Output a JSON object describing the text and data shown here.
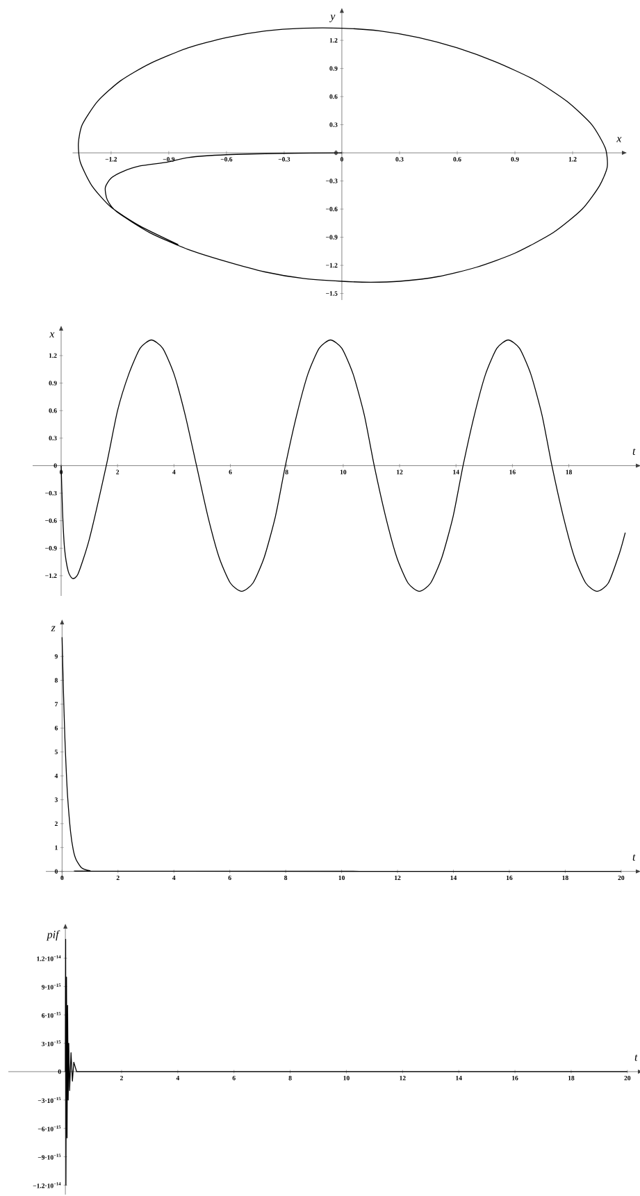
{
  "chart_data": [
    {
      "type": "line",
      "xlabel": "x",
      "ylabel": "y",
      "color": "#000000",
      "xlim": [
        -1.4,
        1.46
      ],
      "ylim": [
        -1.57,
        1.5
      ],
      "xticks": [
        {
          "value": -1.2,
          "label": "−1.2"
        },
        {
          "value": -0.9,
          "label": "−0.9"
        },
        {
          "value": -0.6,
          "label": "−0.6"
        },
        {
          "value": -0.3,
          "label": "−0.3"
        },
        0,
        0.3,
        0.6,
        0.9,
        1.2
      ],
      "yticks": [
        {
          "value": -1.5,
          "label": "−1.5"
        },
        {
          "value": -1.2,
          "label": "−1.2"
        },
        {
          "value": -0.9,
          "label": "−0.9"
        },
        {
          "value": -0.6,
          "label": "−0.6"
        },
        {
          "value": -0.3,
          "label": "−0.3"
        },
        0,
        0.3,
        0.6,
        0.9,
        1.2
      ],
      "x": [
        0,
        -0.3,
        -0.6,
        -0.8,
        -0.91,
        -1.05,
        -1.14,
        -1.2,
        -1.23,
        -1.22,
        -1.17,
        -1.0,
        -0.8,
        -0.6,
        -0.4,
        -0.2,
        0,
        0.15,
        0.3,
        0.5,
        0.7,
        0.9,
        1.1,
        1.25,
        1.34,
        1.38,
        1.37,
        1.3,
        1.17,
        1.0,
        0.8,
        0.6,
        0.4,
        0.2,
        0,
        -0.2,
        -0.4,
        -0.6,
        -0.8,
        -1.0,
        -1.15,
        -1.27,
        -1.35,
        -1.37,
        -1.36,
        -1.3,
        -1.2,
        -1.05,
        -0.85
      ],
      "values": [
        0,
        -0.005,
        -0.02,
        -0.05,
        -0.1,
        -0.14,
        -0.2,
        -0.27,
        -0.37,
        -0.5,
        -0.63,
        -0.85,
        -1.03,
        -1.16,
        -1.27,
        -1.34,
        -1.37,
        -1.38,
        -1.37,
        -1.32,
        -1.22,
        -1.07,
        -0.85,
        -0.6,
        -0.35,
        -0.15,
        0.05,
        0.3,
        0.55,
        0.78,
        0.97,
        1.12,
        1.23,
        1.3,
        1.33,
        1.33,
        1.3,
        1.23,
        1.12,
        0.95,
        0.77,
        0.55,
        0.3,
        0.1,
        -0.1,
        -0.35,
        -0.58,
        -0.78,
        -0.98
      ]
    },
    {
      "type": "line",
      "xlabel": "t",
      "ylabel": "x",
      "color": "#000000",
      "xlim": [
        -1.01,
        20.4
      ],
      "ylim": [
        -1.42,
        1.48
      ],
      "xticks": [
        0,
        2,
        4,
        6,
        8,
        10,
        12,
        14,
        16,
        18
      ],
      "yticks": [
        {
          "value": -1.2,
          "label": "−1.2"
        },
        {
          "value": -0.9,
          "label": "−0.9"
        },
        {
          "value": -0.6,
          "label": "−0.6"
        },
        {
          "value": -0.3,
          "label": "−0.3"
        },
        0,
        0.3,
        0.6,
        0.9,
        1.2
      ],
      "x": [
        0,
        0.05,
        0.12,
        0.25,
        0.4,
        0.6,
        1.0,
        1.6,
        2.0,
        2.4,
        2.8,
        3.2,
        3.6,
        4.0,
        4.4,
        4.8,
        5.2,
        5.6,
        6.0,
        6.4,
        6.8,
        7.2,
        7.6,
        7.95,
        8.35,
        8.75,
        9.15,
        9.55,
        9.95,
        10.35,
        10.75,
        11.1,
        11.5,
        11.9,
        12.3,
        12.7,
        13.1,
        13.5,
        13.9,
        14.25,
        14.65,
        15.05,
        15.45,
        15.85,
        16.25,
        16.65,
        17.05,
        17.4,
        17.8,
        18.2,
        18.6,
        19.0,
        19.4,
        19.8,
        20.0
      ],
      "values": [
        0,
        -0.5,
        -0.9,
        -1.15,
        -1.23,
        -1.18,
        -0.8,
        0,
        0.6,
        1.0,
        1.28,
        1.37,
        1.28,
        1.0,
        0.55,
        0,
        -0.55,
        -1.0,
        -1.28,
        -1.37,
        -1.28,
        -1.0,
        -0.55,
        0,
        0.55,
        1.0,
        1.28,
        1.37,
        1.28,
        1.0,
        0.55,
        0,
        -0.55,
        -1.0,
        -1.28,
        -1.37,
        -1.28,
        -1.0,
        -0.55,
        0,
        0.55,
        1.0,
        1.28,
        1.37,
        1.28,
        1.0,
        0.55,
        0,
        -0.55,
        -1.0,
        -1.28,
        -1.37,
        -1.28,
        -0.95,
        -0.73
      ]
    },
    {
      "type": "line",
      "xlabel": "t",
      "ylabel": "z",
      "color": "#000000",
      "xlim": [
        -0.58,
        20.55
      ],
      "ylim": [
        -0.3,
        10.37
      ],
      "xticks": [
        0,
        2,
        4,
        6,
        8,
        10,
        12,
        14,
        16,
        18,
        20
      ],
      "yticks": [
        0,
        1,
        2,
        3,
        4,
        5,
        6,
        7,
        8,
        9
      ],
      "x": [
        0,
        0.05,
        0.1,
        0.15,
        0.2,
        0.3,
        0.4,
        0.5,
        0.7,
        1.0,
        1.5,
        20
      ],
      "values": [
        9.8,
        7.5,
        5.6,
        4.2,
        3.1,
        1.7,
        0.9,
        0.5,
        0.15,
        0.03,
        0.01,
        0
      ]
    },
    {
      "type": "line",
      "xlabel": "t",
      "ylabel": "pif",
      "color": "#000000",
      "xlim": [
        -2.03,
        20.4
      ],
      "ylim": [
        -1.3e-14,
        1.52e-14
      ],
      "xticks": [
        2,
        4,
        6,
        8,
        10,
        12,
        14,
        16,
        18,
        20
      ],
      "yticks": [
        {
          "value": -1.2e-14,
          "label": "−1.2·10$^{−14}$"
        },
        {
          "value": -9e-15,
          "label": "−9·10$^{−15}$"
        },
        {
          "value": -6e-15,
          "label": "−6·10$^{−15}$"
        },
        {
          "value": -3e-15,
          "label": "−3·10$^{−15}$"
        },
        0,
        {
          "value": 3e-15,
          "label": "3·10$^{−15}$"
        },
        {
          "value": 6e-15,
          "label": "6·10$^{−15}$"
        },
        {
          "value": 9e-15,
          "label": "9·10$^{−15}$"
        },
        {
          "value": 1.2e-14,
          "label": "1.2·10$^{−14}$"
        }
      ],
      "x": [
        0,
        0.01,
        0.02,
        0.04,
        0.06,
        0.08,
        0.1,
        0.12,
        0.15,
        0.2,
        0.25,
        0.3,
        0.4,
        20
      ],
      "values": [
        0,
        1.4e-14,
        -1.2e-14,
        1e-14,
        -7e-15,
        7e-15,
        -3e-15,
        3e-15,
        -2e-15,
        2e-15,
        -1e-15,
        1e-15,
        0,
        0
      ]
    }
  ]
}
